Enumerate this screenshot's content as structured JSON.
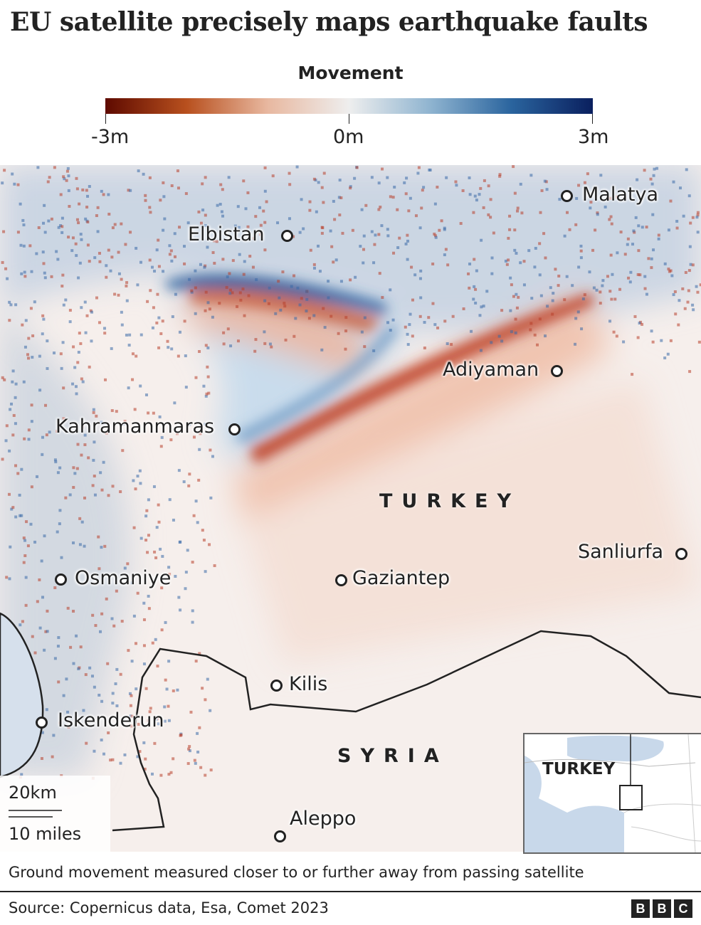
{
  "title": "EU satellite precisely maps earthquake faults",
  "legend": {
    "title": "Movement",
    "min_label": "-3m",
    "mid_label": "0m",
    "max_label": "3m",
    "colors": [
      "#5e0a00",
      "#b8501e",
      "#e8b8a0",
      "#eeeeee",
      "#8fb4d0",
      "#2a649e",
      "#0a1f5e"
    ]
  },
  "map": {
    "cities": [
      {
        "name": "Malatya"
      },
      {
        "name": "Elbistan"
      },
      {
        "name": "Adiyaman"
      },
      {
        "name": "Kahramanmaras"
      },
      {
        "name": "Sanliurfa"
      },
      {
        "name": "Osmaniye"
      },
      {
        "name": "Gaziantep"
      },
      {
        "name": "Kilis"
      },
      {
        "name": "Iskenderun"
      },
      {
        "name": "Aleppo"
      }
    ],
    "countries": [
      "TURKEY",
      "SYRIA"
    ],
    "scale": {
      "km": "20km",
      "miles": "10 miles"
    },
    "inset": {
      "label": "TURKEY"
    }
  },
  "caption": "Ground movement measured closer to or further away from passing satellite",
  "source": "Source: Copernicus data, Esa, Comet 2023",
  "logo": [
    "B",
    "B",
    "C"
  ]
}
